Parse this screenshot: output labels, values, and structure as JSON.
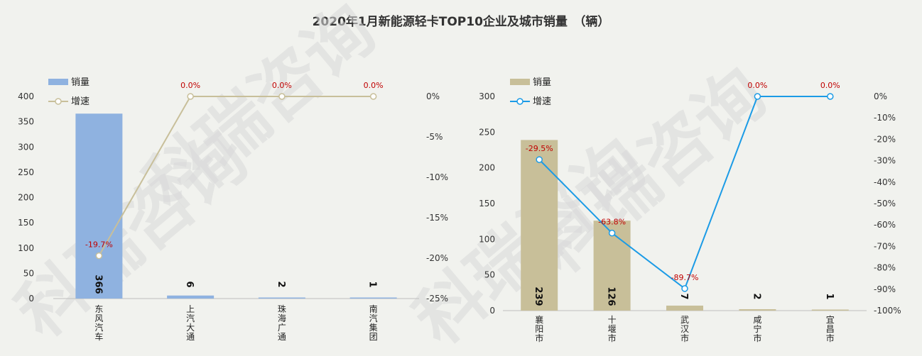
{
  "title": "2020年1月新能源轻卡TOP10企业及城市销量　（辆）",
  "watermark": "科瑞咨询",
  "colors": {
    "left_bar": "#8fb2e0",
    "left_line": "#c8bf9a",
    "right_bar": "#c8bf99",
    "right_line": "#1b9be6",
    "rate_label": "#c00000"
  },
  "chart_data": [
    {
      "type": "bar",
      "legend": {
        "bar": "销量",
        "line": "增速",
        "placement": "top-left"
      },
      "categories": [
        "东风汽车",
        "上汽大通",
        "珠海广通",
        "南汽集团"
      ],
      "series": [
        {
          "name": "销量",
          "type": "bar",
          "values": [
            366,
            6,
            2,
            1
          ]
        },
        {
          "name": "增速",
          "type": "line",
          "values": [
            -19.7,
            0.0,
            0.0,
            0.0
          ]
        }
      ],
      "value_labels": [
        "366",
        "6",
        "2",
        "1"
      ],
      "rate_labels": [
        "-19.7%",
        "0.0%",
        "0.0%",
        "0.0%"
      ],
      "ylim": [
        0,
        400
      ],
      "yticks": [
        "0",
        "50",
        "100",
        "150",
        "200",
        "250",
        "300",
        "350",
        "400"
      ],
      "y2lim": [
        -25,
        0
      ],
      "y2ticks": [
        "-25%",
        "-20%",
        "-15%",
        "-10%",
        "-5%",
        "0%"
      ]
    },
    {
      "type": "bar",
      "legend": {
        "bar": "销量",
        "line": "增速",
        "placement": "top-left"
      },
      "categories": [
        "襄阳市",
        "十堰市",
        "武汉市",
        "咸宁市",
        "宜昌市"
      ],
      "series": [
        {
          "name": "销量",
          "type": "bar",
          "values": [
            239,
            126,
            7,
            2,
            1
          ]
        },
        {
          "name": "增速",
          "type": "line",
          "values": [
            -29.5,
            -63.8,
            -89.7,
            0.0,
            0.0
          ]
        }
      ],
      "value_labels": [
        "239",
        "126",
        "7",
        "2",
        "1"
      ],
      "rate_labels": [
        "-29.5%",
        "-63.8%",
        "-89.7%",
        "0.0%",
        "0.0%"
      ],
      "ylim": [
        0,
        300
      ],
      "yticks": [
        "0",
        "50",
        "100",
        "150",
        "200",
        "250",
        "300"
      ],
      "y2lim": [
        -100,
        0
      ],
      "y2ticks": [
        "-100%",
        "-90%",
        "-80%",
        "-70%",
        "-60%",
        "-50%",
        "-40%",
        "-30%",
        "-20%",
        "-10%",
        "0%"
      ]
    }
  ]
}
